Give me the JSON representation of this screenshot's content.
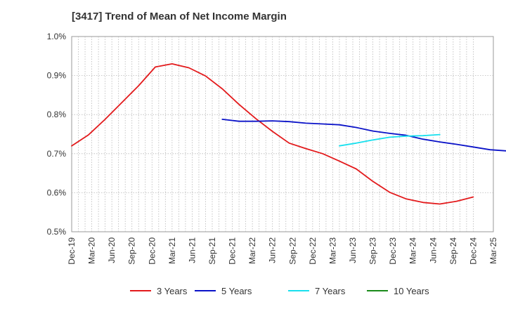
{
  "chart_data": {
    "type": "line",
    "title": "[3417]  Trend of Mean of Net Income Margin",
    "xlabel": "",
    "ylabel": "",
    "ylim": [
      0.5,
      1.0
    ],
    "y_unit": "%",
    "yticks": [
      "0.5%",
      "0.6%",
      "0.7%",
      "0.8%",
      "0.9%",
      "1.0%"
    ],
    "ytick_values": [
      0.5,
      0.6,
      0.7,
      0.8,
      0.9,
      1.0
    ],
    "x_ticks": [
      "Dec-19",
      "Mar-20",
      "Jun-20",
      "Sep-20",
      "Dec-20",
      "Mar-21",
      "Jun-21",
      "Sep-21",
      "Dec-21",
      "Mar-22",
      "Jun-22",
      "Sep-22",
      "Dec-22",
      "Mar-23",
      "Jun-23",
      "Sep-23",
      "Dec-23",
      "Mar-24",
      "Jun-24",
      "Sep-24",
      "Dec-24",
      "Mar-25"
    ],
    "grid": true,
    "legend_position": "bottom",
    "series": [
      {
        "name": "3 Years",
        "color": "#e31a1c",
        "values": [
          0.72,
          0.748,
          0.788,
          0.831,
          0.874,
          0.922,
          0.93,
          0.92,
          0.899,
          0.866,
          0.826,
          0.79,
          0.757,
          0.727,
          0.713,
          0.7,
          0.681,
          0.661,
          0.629,
          0.601,
          0.584,
          0.575,
          0.571,
          0.578,
          0.589
        ]
      },
      {
        "name": "5 Years",
        "color": "#0a12c8",
        "values": [
          null,
          null,
          null,
          null,
          null,
          null,
          null,
          null,
          null,
          0.788,
          0.783,
          0.783,
          0.784,
          0.782,
          0.778,
          0.776,
          0.774,
          0.767,
          0.758,
          0.752,
          0.747,
          0.737,
          0.73,
          0.724,
          0.717,
          0.71,
          0.707
        ]
      },
      {
        "name": "7 Years",
        "color": "#19e0ee",
        "values": [
          null,
          null,
          null,
          null,
          null,
          null,
          null,
          null,
          null,
          null,
          null,
          null,
          null,
          null,
          null,
          null,
          0.72,
          0.727,
          0.735,
          0.742,
          0.745,
          0.746,
          0.749
        ]
      },
      {
        "name": "10 Years",
        "color": "#1a8a1a",
        "values": []
      }
    ]
  }
}
